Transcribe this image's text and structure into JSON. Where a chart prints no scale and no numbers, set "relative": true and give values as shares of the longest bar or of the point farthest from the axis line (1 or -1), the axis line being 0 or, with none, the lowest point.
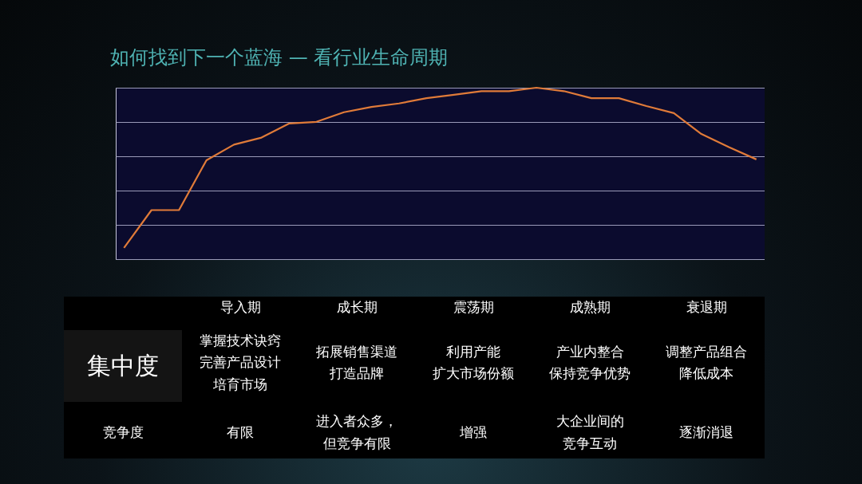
{
  "chart_data": [
    {
      "type": "line",
      "title": "如何找到下一个蓝海 — 看行业生命周期",
      "relative": true,
      "grid": "y",
      "categories": [
        null,
        null,
        null,
        null,
        null,
        null,
        null,
        null,
        null,
        null,
        null,
        null,
        null,
        null,
        null,
        null,
        null,
        null,
        null,
        null,
        null,
        null,
        null,
        null
      ],
      "series": [
        {
          "color": "#e07b39",
          "values": [
            0.066,
            0.286,
            0.286,
            0.577,
            0.668,
            0.709,
            0.791,
            0.801,
            0.857,
            0.888,
            0.908,
            0.939,
            0.959,
            0.98,
            0.98,
            1,
            0.98,
            0.939,
            0.939,
            0.893,
            0.852,
            0.73,
            0.653,
            0.582
          ]
        }
      ]
    },
    {
      "type": "other",
      "annotations": [
        "集中度",
        "竞争度"
      ]
    },
    {
      "type": "other",
      "title": "导入期",
      "annotations": [
        "掌握技术诀窍",
        "完善产品设计",
        "培育市场",
        "有限"
      ]
    },
    {
      "type": "other",
      "title": "成长期",
      "annotations": [
        "拓展销售渠道",
        "打造品牌",
        "进入者众多，但竞争有限"
      ]
    },
    {
      "type": "other",
      "title": "震荡期",
      "annotations": [
        "利用产能",
        "扩大市场份额",
        "增强"
      ]
    },
    {
      "type": "other",
      "title": "成熟期",
      "annotations": [
        "产业内整合",
        "保持竞争优势",
        "大企业间的竞争互动"
      ]
    },
    {
      "type": "other",
      "title": "衰退期",
      "annotations": [
        "调整产品组合",
        "降低成本",
        "逐渐消退"
      ]
    }
  ]
}
